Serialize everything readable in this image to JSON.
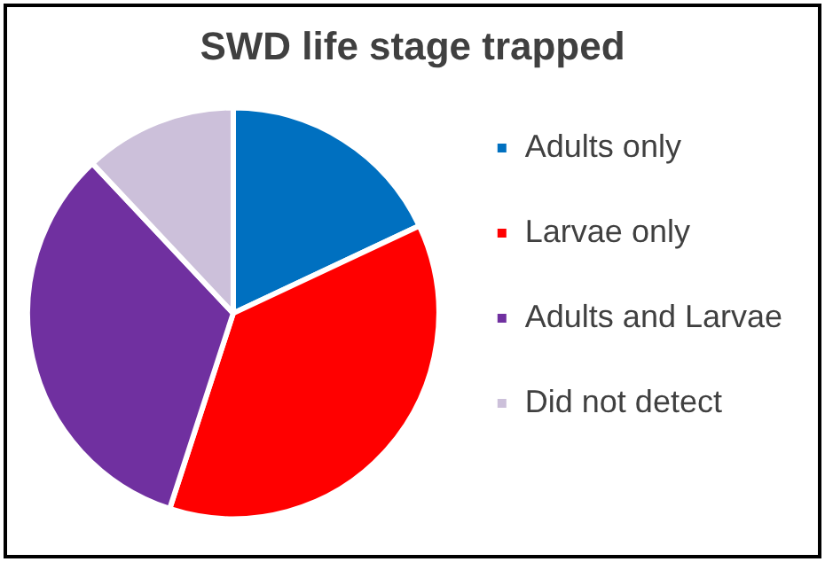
{
  "chart_data": {
    "type": "pie",
    "title": "SWD life stage trapped",
    "categories": [
      "Adults only",
      "Larvae only",
      "Adults and Larvae",
      "Did not detect"
    ],
    "values": [
      18,
      37,
      33,
      12
    ],
    "colors": [
      "#0070c0",
      "#ff0000",
      "#7030a0",
      "#ccc0da"
    ],
    "legend": "right"
  }
}
